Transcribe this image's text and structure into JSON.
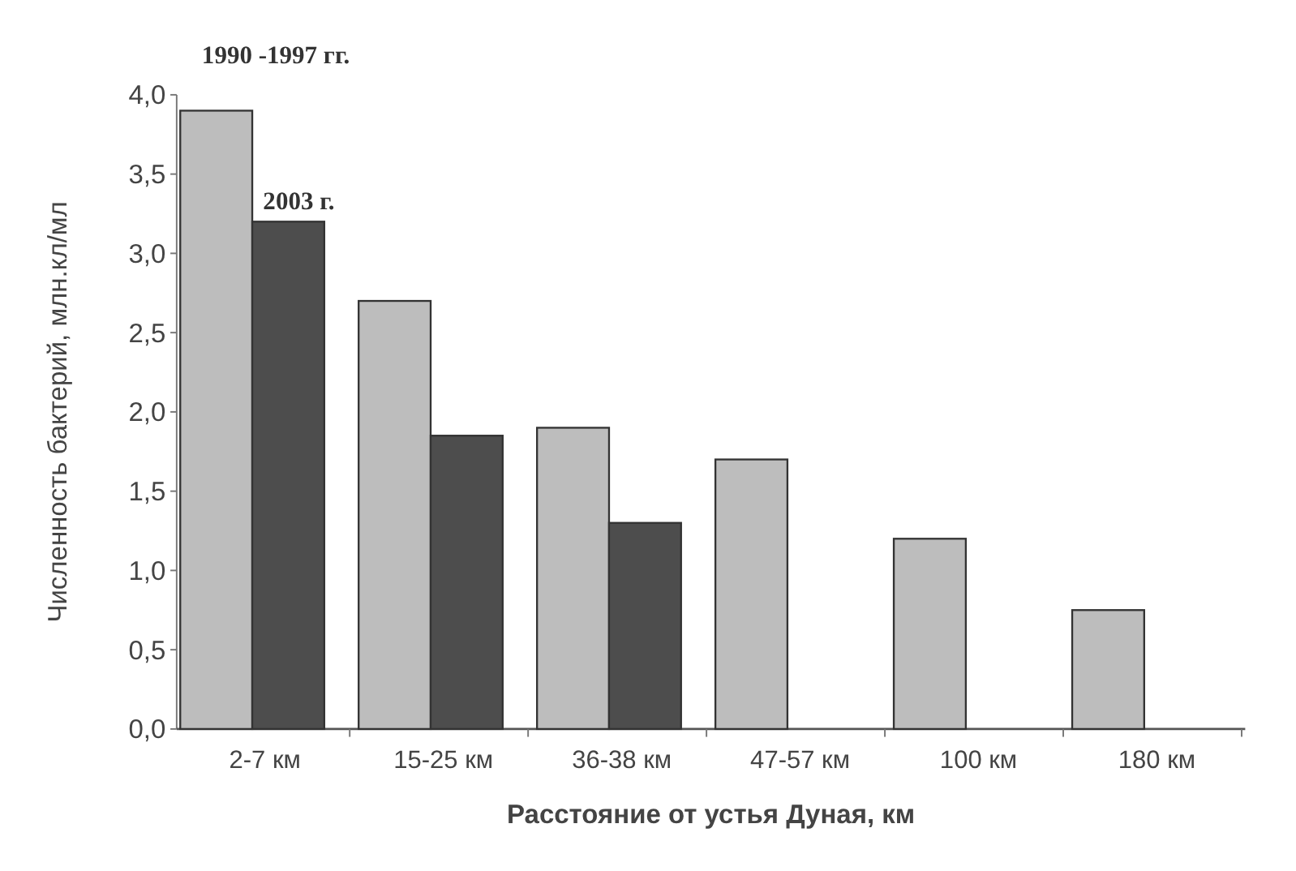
{
  "chart_data": {
    "type": "bar",
    "xlabel": "Расстояние от устья Дуная, км",
    "ylabel": "Численность бактерий, млн.кл/мл",
    "categories": [
      "2-7 км",
      "15-25 км",
      "36-38 км",
      "47-57 км",
      "100 км",
      "180 км"
    ],
    "series": [
      {
        "name": "1990 -1997 гг.",
        "color": "#bdbdbd",
        "values": [
          3.9,
          2.7,
          1.9,
          1.7,
          1.2,
          0.75
        ]
      },
      {
        "name": "2003 г.",
        "color": "#4d4d4d",
        "values": [
          3.2,
          1.85,
          1.3,
          null,
          null,
          null
        ]
      }
    ],
    "ylim": [
      0,
      4
    ],
    "yticks": [
      {
        "value": 0,
        "label": "0,0"
      },
      {
        "value": 0.5,
        "label": "0,5"
      },
      {
        "value": 1,
        "label": "1,0"
      },
      {
        "value": 1.5,
        "label": "1,5"
      },
      {
        "value": 2,
        "label": "2,0"
      },
      {
        "value": 2.5,
        "label": "2,5"
      },
      {
        "value": 3,
        "label": "3,0"
      },
      {
        "value": 3.5,
        "label": "3,5"
      },
      {
        "value": 4,
        "label": "4,0"
      }
    ]
  }
}
